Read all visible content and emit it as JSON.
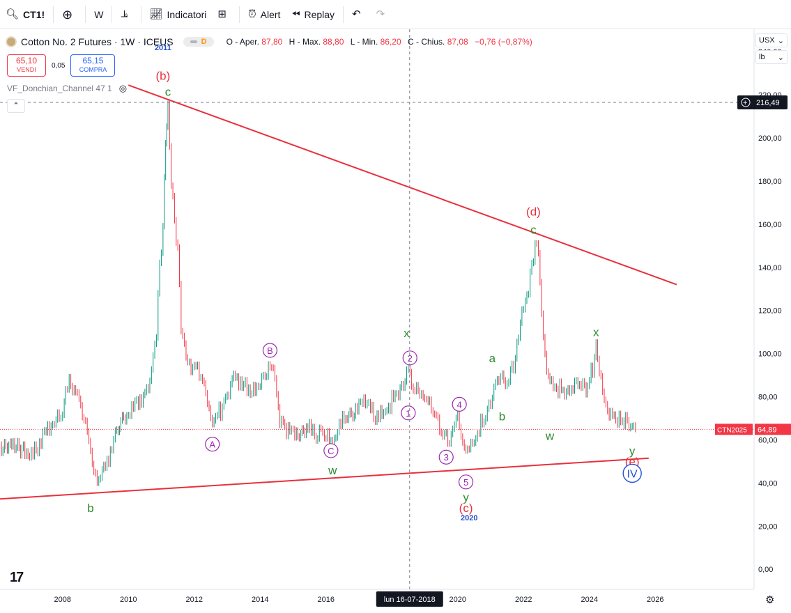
{
  "toolbar": {
    "symbol": "CT1!",
    "interval": "W",
    "indicators_label": "Indicatori",
    "alert_label": "Alert",
    "replay_label": "Replay"
  },
  "legend": {
    "title": "Cotton No. 2 Futures · 1W · ICEUS",
    "badge": "D",
    "open_label": "O - Aper.",
    "open": "87,80",
    "high_label": "H - Max.",
    "high": "88,80",
    "low_label": "L - Min.",
    "low": "86,20",
    "close_label": "C - Chius.",
    "close": "87,08",
    "change": "−0,76 (−0,87%)"
  },
  "trade": {
    "sell_price": "65,10",
    "sell_label": "VENDI",
    "spread": "0,05",
    "buy_price": "65,15",
    "buy_label": "COMPRA"
  },
  "indicator": {
    "name": "VF_Donchian_Channel 47 1"
  },
  "units": {
    "currency": "USX",
    "measure": "lb"
  },
  "colors": {
    "up": "#089981",
    "down": "#f23645",
    "trend": "#e8303c",
    "wave_purple": "#9c27b0",
    "wave_green": "#2e8b2e",
    "wave_red": "#e8303c",
    "wave_blue": "#1e4fd8",
    "year_label": "#2350c8"
  },
  "chart_data": {
    "type": "line",
    "title": "Cotton No. 2 Futures · 1W · ICEUS",
    "xlim": [
      2006.1,
      2029.0
    ],
    "ylim": [
      -9.3,
      250.4
    ],
    "yticks": [
      "0,00",
      "20,00",
      "40,00",
      "60,00",
      "80,00",
      "100,00",
      "120,00",
      "140,00",
      "160,00",
      "180,00",
      "200,00",
      "220,00",
      "240,00"
    ],
    "ytick_values": [
      0,
      20,
      40,
      60,
      80,
      100,
      120,
      140,
      160,
      180,
      200,
      220,
      240
    ],
    "xticks": [
      "2008",
      "2010",
      "2012",
      "2014",
      "2016",
      "2018",
      "2020",
      "2022",
      "2024",
      "2026"
    ],
    "xtick_values": [
      2008,
      2010,
      2012,
      2014,
      2016,
      2018,
      2020,
      2022,
      2024,
      2026
    ],
    "last_price": {
      "label": "CTN2025",
      "value": "64,89",
      "y": 64.89
    },
    "crosshair": {
      "price_label": "216,49",
      "price": 216.49,
      "date_label": "lun 16-07-2018",
      "x": 2018.54
    },
    "price_series": [
      [
        2006.1,
        56
      ],
      [
        2006.5,
        58
      ],
      [
        2006.9,
        54
      ],
      [
        2007.2,
        55
      ],
      [
        2007.5,
        66
      ],
      [
        2007.8,
        68
      ],
      [
        2008.0,
        72
      ],
      [
        2008.2,
        88
      ],
      [
        2008.45,
        82
      ],
      [
        2008.6,
        74
      ],
      [
        2008.8,
        60
      ],
      [
        2008.95,
        42
      ],
      [
        2009.1,
        40
      ],
      [
        2009.3,
        48
      ],
      [
        2009.6,
        62
      ],
      [
        2009.9,
        70
      ],
      [
        2010.2,
        78
      ],
      [
        2010.5,
        80
      ],
      [
        2010.7,
        92
      ],
      [
        2010.85,
        110
      ],
      [
        2010.95,
        140
      ],
      [
        2011.05,
        160
      ],
      [
        2011.13,
        200
      ],
      [
        2011.2,
        215
      ],
      [
        2011.3,
        180
      ],
      [
        2011.4,
        160
      ],
      [
        2011.5,
        150
      ],
      [
        2011.6,
        110
      ],
      [
        2011.75,
        100
      ],
      [
        2011.9,
        95
      ],
      [
        2012.1,
        95
      ],
      [
        2012.3,
        85
      ],
      [
        2012.45,
        72
      ],
      [
        2012.6,
        70
      ],
      [
        2012.8,
        74
      ],
      [
        2013.0,
        82
      ],
      [
        2013.2,
        90
      ],
      [
        2013.5,
        86
      ],
      [
        2013.8,
        82
      ],
      [
        2014.1,
        90
      ],
      [
        2014.3,
        95
      ],
      [
        2014.45,
        88
      ],
      [
        2014.6,
        70
      ],
      [
        2014.8,
        64
      ],
      [
        2015.1,
        63
      ],
      [
        2015.4,
        66
      ],
      [
        2015.7,
        62
      ],
      [
        2015.9,
        64
      ],
      [
        2016.1,
        60
      ],
      [
        2016.3,
        62
      ],
      [
        2016.6,
        72
      ],
      [
        2016.9,
        74
      ],
      [
        2017.2,
        78
      ],
      [
        2017.5,
        70
      ],
      [
        2017.8,
        72
      ],
      [
        2018.0,
        78
      ],
      [
        2018.3,
        85
      ],
      [
        2018.5,
        94
      ],
      [
        2018.7,
        82
      ],
      [
        2018.95,
        80
      ],
      [
        2019.1,
        76
      ],
      [
        2019.3,
        72
      ],
      [
        2019.5,
        62
      ],
      [
        2019.7,
        60
      ],
      [
        2019.85,
        66
      ],
      [
        2020.0,
        70
      ],
      [
        2020.15,
        60
      ],
      [
        2020.25,
        52
      ],
      [
        2020.5,
        60
      ],
      [
        2020.7,
        68
      ],
      [
        2020.9,
        72
      ],
      [
        2021.1,
        84
      ],
      [
        2021.25,
        90
      ],
      [
        2021.45,
        86
      ],
      [
        2021.7,
        95
      ],
      [
        2021.85,
        110
      ],
      [
        2022.0,
        120
      ],
      [
        2022.15,
        130
      ],
      [
        2022.25,
        140
      ],
      [
        2022.35,
        152
      ],
      [
        2022.45,
        146
      ],
      [
        2022.55,
        120
      ],
      [
        2022.7,
        90
      ],
      [
        2022.85,
        86
      ],
      [
        2023.1,
        84
      ],
      [
        2023.3,
        80
      ],
      [
        2023.5,
        84
      ],
      [
        2023.7,
        86
      ],
      [
        2023.9,
        82
      ],
      [
        2024.1,
        94
      ],
      [
        2024.2,
        102
      ],
      [
        2024.35,
        90
      ],
      [
        2024.5,
        76
      ],
      [
        2024.7,
        72
      ],
      [
        2024.9,
        70
      ],
      [
        2025.1,
        68
      ],
      [
        2025.3,
        66
      ],
      [
        2025.4,
        65
      ]
    ],
    "trendlines": [
      {
        "from": [
          2010.0,
          224.5
        ],
        "to": [
          2026.65,
          132.0
        ]
      },
      {
        "from": [
          2006.0,
          32.5
        ],
        "to": [
          2025.8,
          51.5
        ]
      }
    ],
    "wave_labels": [
      {
        "text": "2011",
        "x": 2011.05,
        "y": 242.0,
        "kind": "year"
      },
      {
        "text": "(b)",
        "x": 2011.05,
        "y": 229.0,
        "kind": "red"
      },
      {
        "text": "c",
        "x": 2011.2,
        "y": 221.5,
        "kind": "green"
      },
      {
        "text": "b",
        "x": 2008.85,
        "y": 28.5,
        "kind": "green"
      },
      {
        "text": "A",
        "x": 2012.55,
        "y": 58.0,
        "kind": "purple-circle"
      },
      {
        "text": "B",
        "x": 2014.3,
        "y": 101.5,
        "kind": "purple-circle"
      },
      {
        "text": "C",
        "x": 2016.15,
        "y": 55.0,
        "kind": "purple-circle"
      },
      {
        "text": "w",
        "x": 2016.2,
        "y": 46.0,
        "kind": "green"
      },
      {
        "text": "x",
        "x": 2018.45,
        "y": 109.5,
        "kind": "green"
      },
      {
        "text": "2",
        "x": 2018.55,
        "y": 98.0,
        "kind": "purple-circle"
      },
      {
        "text": "1",
        "x": 2018.5,
        "y": 72.5,
        "kind": "purple-circle"
      },
      {
        "text": "4",
        "x": 2020.05,
        "y": 76.5,
        "kind": "purple-circle"
      },
      {
        "text": "3",
        "x": 2019.65,
        "y": 52.0,
        "kind": "purple-circle"
      },
      {
        "text": "5",
        "x": 2020.25,
        "y": 40.5,
        "kind": "purple-circle"
      },
      {
        "text": "y",
        "x": 2020.25,
        "y": 33.5,
        "kind": "green"
      },
      {
        "text": "(c)",
        "x": 2020.25,
        "y": 28.5,
        "kind": "red"
      },
      {
        "text": "2020",
        "x": 2020.35,
        "y": 24.0,
        "kind": "year"
      },
      {
        "text": "a",
        "x": 2021.05,
        "y": 98.0,
        "kind": "green"
      },
      {
        "text": "b",
        "x": 2021.35,
        "y": 71.0,
        "kind": "green"
      },
      {
        "text": "(d)",
        "x": 2022.3,
        "y": 166.0,
        "kind": "red"
      },
      {
        "text": "c",
        "x": 2022.3,
        "y": 157.5,
        "kind": "green"
      },
      {
        "text": "w",
        "x": 2022.8,
        "y": 62.0,
        "kind": "green"
      },
      {
        "text": "x",
        "x": 2024.2,
        "y": 110.0,
        "kind": "green"
      },
      {
        "text": "y",
        "x": 2025.3,
        "y": 55.0,
        "kind": "green"
      },
      {
        "text": "(e)",
        "x": 2025.3,
        "y": 50.0,
        "kind": "red"
      },
      {
        "text": "IV",
        "x": 2025.3,
        "y": 44.5,
        "kind": "blue-circle"
      }
    ]
  }
}
